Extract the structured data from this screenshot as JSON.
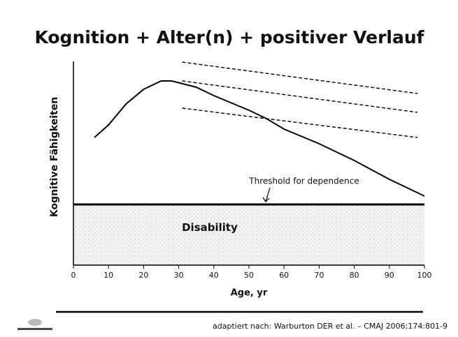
{
  "chart_data": {
    "type": "line",
    "title": "Kognition + Alter(n) + positiver Verlauf",
    "x_label": "Age, yr",
    "y_label": "Kognitive Fähigkeiten",
    "xlim": [
      0,
      100
    ],
    "xticks": [
      0,
      10,
      20,
      30,
      40,
      50,
      60,
      70,
      80,
      90,
      100
    ],
    "ylim": [
      0,
      100
    ],
    "series": [
      {
        "color": "#000000",
        "style": "solid",
        "x": [
          6,
          10,
          15,
          20,
          25,
          28,
          35,
          40,
          50,
          55,
          60,
          70,
          80,
          90,
          100
        ],
        "values": [
          61,
          67,
          77,
          84,
          88,
          88,
          85,
          81,
          74,
          70,
          65,
          58,
          50,
          41,
          33
        ]
      },
      {
        "color": "#000000",
        "style": "dashed",
        "x": [
          31,
          98
        ],
        "values": [
          97,
          82
        ]
      },
      {
        "color": "#000000",
        "style": "dashed",
        "x": [
          31,
          98
        ],
        "values": [
          88,
          73
        ]
      },
      {
        "color": "#000000",
        "style": "dashed",
        "x": [
          31,
          98
        ],
        "values": [
          75,
          61
        ]
      }
    ],
    "threshold": {
      "label": "Threshold for dependence",
      "value": 29
    },
    "region_label": "Disability",
    "source": "adaptiert nach: Warburton DER et al. – CMAJ 2006;174:801-9"
  }
}
